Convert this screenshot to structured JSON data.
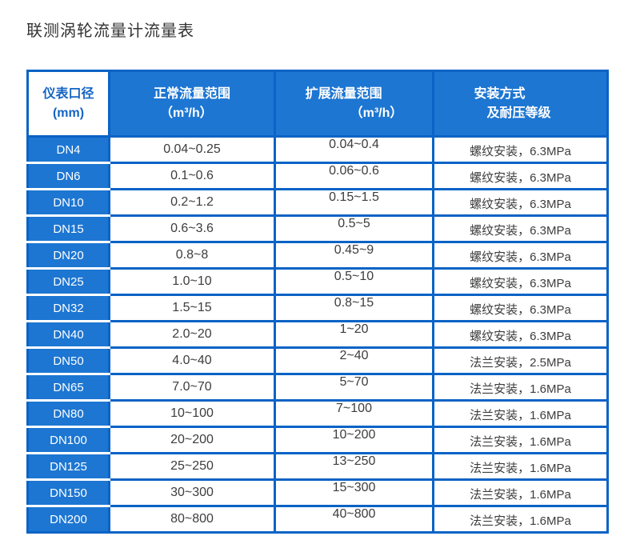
{
  "title": "联测涡轮流量计流量表",
  "table": {
    "columns": [
      {
        "title": "仪表口径",
        "subtitle": "(mm)"
      },
      {
        "title": "正常流量范围",
        "subtitle": "（m³/h）"
      },
      {
        "title": "扩展流量范围",
        "subtitle": "（m³/h）"
      },
      {
        "title": "安装方式",
        "subtitle": "及耐压等级"
      }
    ],
    "rows": [
      {
        "diameter": "DN4",
        "normal_range": "0.04~0.25",
        "extended_range": "0.04~0.4",
        "installation": "螺纹安装，6.3MPa"
      },
      {
        "diameter": "DN6",
        "normal_range": "0.1~0.6",
        "extended_range": "0.06~0.6",
        "installation": "螺纹安装，6.3MPa"
      },
      {
        "diameter": "DN10",
        "normal_range": "0.2~1.2",
        "extended_range": "0.15~1.5",
        "installation": "螺纹安装，6.3MPa"
      },
      {
        "diameter": "DN15",
        "normal_range": "0.6~3.6",
        "extended_range": "0.5~5",
        "installation": "螺纹安装，6.3MPa"
      },
      {
        "diameter": "DN20",
        "normal_range": "0.8~8",
        "extended_range": "0.45~9",
        "installation": "螺纹安装，6.3MPa"
      },
      {
        "diameter": "DN25",
        "normal_range": "1.0~10",
        "extended_range": "0.5~10",
        "installation": "螺纹安装，6.3MPa"
      },
      {
        "diameter": "DN32",
        "normal_range": "1.5~15",
        "extended_range": "0.8~15",
        "installation": "螺纹安装，6.3MPa"
      },
      {
        "diameter": "DN40",
        "normal_range": "2.0~20",
        "extended_range": "1~20",
        "installation": "螺纹安装，6.3MPa"
      },
      {
        "diameter": "DN50",
        "normal_range": "4.0~40",
        "extended_range": "2~40",
        "installation": "法兰安装，2.5MPa"
      },
      {
        "diameter": "DN65",
        "normal_range": "7.0~70",
        "extended_range": "5~70",
        "installation": "法兰安装，1.6MPa"
      },
      {
        "diameter": "DN80",
        "normal_range": "10~100",
        "extended_range": "7~100",
        "installation": "法兰安装，1.6MPa"
      },
      {
        "diameter": "DN100",
        "normal_range": "20~200",
        "extended_range": "10~200",
        "installation": "法兰安装，1.6MPa"
      },
      {
        "diameter": "DN125",
        "normal_range": "25~250",
        "extended_range": "13~250",
        "installation": "法兰安装，1.6MPa"
      },
      {
        "diameter": "DN150",
        "normal_range": "30~300",
        "extended_range": "15~300",
        "installation": "法兰安装，1.6MPa"
      },
      {
        "diameter": "DN200",
        "normal_range": "80~800",
        "extended_range": "40~800",
        "installation": "法兰安装，1.6MPa"
      }
    ]
  },
  "colors": {
    "cell_blue": "#1d76d2",
    "border_blue": "#0a63c6",
    "corner_text_blue": "#1565c4",
    "data_text": "#3d3d3d",
    "title_text": "#333333"
  }
}
